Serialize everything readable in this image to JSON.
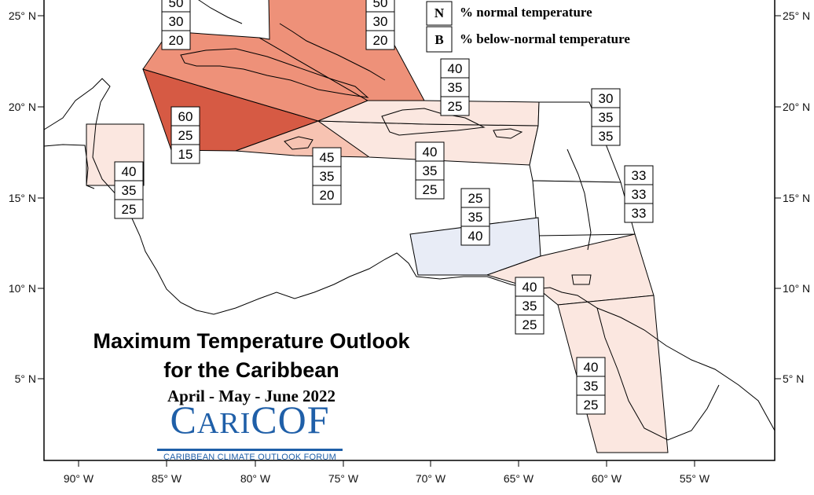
{
  "title": {
    "line1": "Maximum Temperature Outlook",
    "line2": "for the Caribbean",
    "period": "April - May - June 2022"
  },
  "logo": {
    "wordmark_parts": [
      "C",
      "ARI",
      "COF"
    ],
    "tagline": "CARIBBEAN CLIMATE OUTLOOK FORUM",
    "color": "#1f5fa8"
  },
  "legend": [
    {
      "key": "N",
      "text": "% normal temperature"
    },
    {
      "key": "B",
      "text": "% below-normal temperature"
    }
  ],
  "axes": {
    "longitude_labels": [
      "90° W",
      "85° W",
      "80° W",
      "75° W",
      "70° W",
      "65° W",
      "60° W",
      "55° W"
    ],
    "latitude_labels": [
      "25° N",
      "20° N",
      "15° N",
      "10° N",
      "5° N"
    ]
  },
  "colors": {
    "above_60": "#d65a44",
    "above_50": "#ee9179",
    "above_45": "#f7c3b2",
    "above_40": "#fbe7e0",
    "below_40": "#e8ecf6",
    "border": "#000000"
  },
  "regions": [
    {
      "id": "cuba",
      "above": "50",
      "normal": "30",
      "below": "20",
      "color": "#ee9179"
    },
    {
      "id": "bahamas",
      "above": "50",
      "normal": "30",
      "below": "20",
      "color": "#ee9179"
    },
    {
      "id": "cayman",
      "above": "60",
      "normal": "25",
      "below": "15",
      "color": "#d65a44"
    },
    {
      "id": "jamaica",
      "above": "45",
      "normal": "35",
      "below": "20",
      "color": "#f7c3b2"
    },
    {
      "id": "hispaniola",
      "above": "40",
      "normal": "35",
      "below": "25",
      "color": "#fbe7e0"
    },
    {
      "id": "turks-caicos",
      "above": "40",
      "normal": "35",
      "below": "25",
      "color": "#fbe7e0"
    },
    {
      "id": "belize",
      "above": "40",
      "normal": "35",
      "below": "25",
      "color": "#fbe7e0"
    },
    {
      "id": "abc-islands",
      "above": "25",
      "normal": "35",
      "below": "40",
      "color": "#e8ecf6"
    },
    {
      "id": "trinidad",
      "above": "40",
      "normal": "35",
      "below": "25",
      "color": "#fbe7e0"
    },
    {
      "id": "guianas",
      "above": "40",
      "normal": "35",
      "below": "25",
      "color": "#fbe7e0"
    },
    {
      "id": "leeward",
      "above": "30",
      "normal": "35",
      "below": "35",
      "color": "#ffffff"
    },
    {
      "id": "windward",
      "above": "33",
      "normal": "33",
      "below": "33",
      "color": "#ffffff"
    }
  ]
}
